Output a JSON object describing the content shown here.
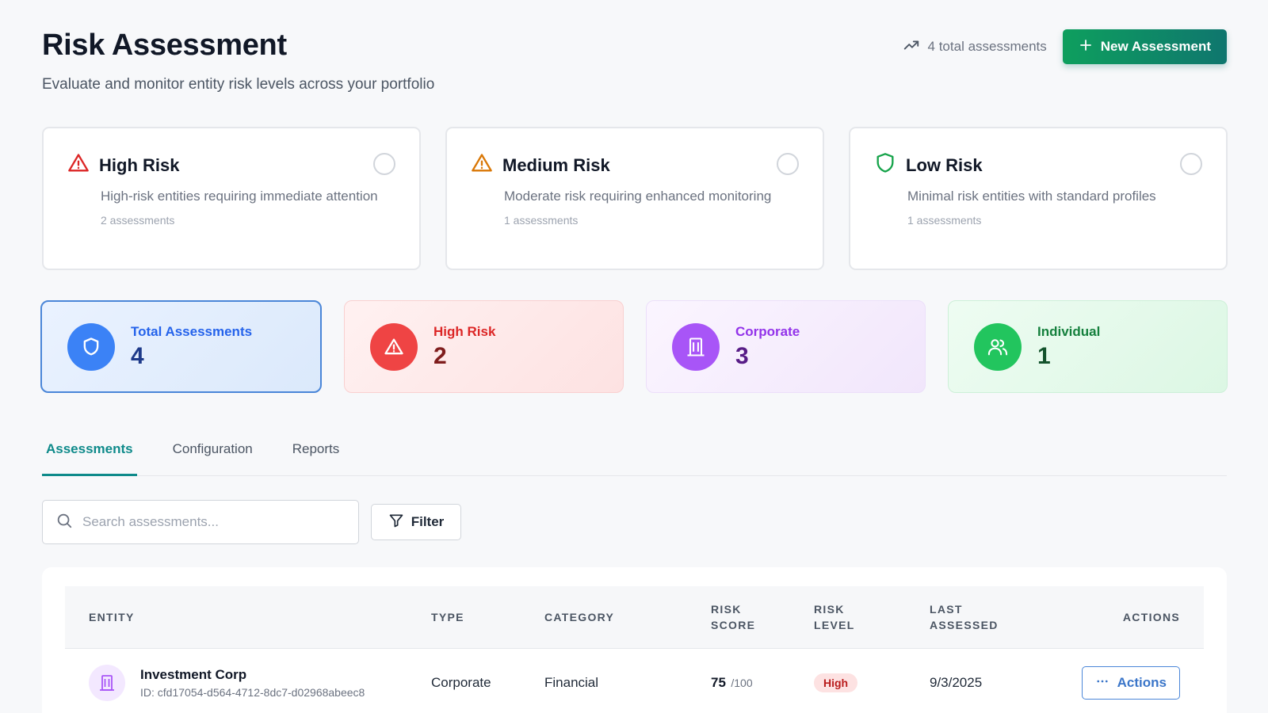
{
  "header": {
    "title": "Risk Assessment",
    "subtitle": "Evaluate and monitor entity risk levels across your portfolio",
    "total_label": "4 total assessments",
    "new_button_label": "New Assessment"
  },
  "risk_levels": [
    {
      "title": "High Risk",
      "description": "High-risk entities requiring immediate attention",
      "count_label": "2 assessments",
      "icon": "alert-triangle-icon",
      "color": "#dc2626"
    },
    {
      "title": "Medium Risk",
      "description": "Moderate risk requiring enhanced monitoring",
      "count_label": "1 assessments",
      "icon": "alert-triangle-icon",
      "color": "#d97706"
    },
    {
      "title": "Low Risk",
      "description": "Minimal risk entities with standard profiles",
      "count_label": "1 assessments",
      "icon": "shield-icon",
      "color": "#16a34a"
    }
  ],
  "stats": [
    {
      "label": "Total Assessments",
      "value": "4",
      "icon": "shield-icon",
      "color": "#3b82f6"
    },
    {
      "label": "High Risk",
      "value": "2",
      "icon": "alert-triangle-icon",
      "color": "#ef4444"
    },
    {
      "label": "Corporate",
      "value": "3",
      "icon": "building-icon",
      "color": "#a855f7"
    },
    {
      "label": "Individual",
      "value": "1",
      "icon": "users-icon",
      "color": "#22c55e"
    }
  ],
  "tabs": [
    {
      "label": "Assessments",
      "active": true
    },
    {
      "label": "Configuration",
      "active": false
    },
    {
      "label": "Reports",
      "active": false
    }
  ],
  "search": {
    "placeholder": "Search assessments..."
  },
  "filter_label": "Filter",
  "table": {
    "headers": {
      "entity": "ENTITY",
      "type": "TYPE",
      "category": "CATEGORY",
      "risk_score_1": "RISK",
      "risk_score_2": "SCORE",
      "risk_level_1": "RISK",
      "risk_level_2": "LEVEL",
      "last_assessed_1": "LAST",
      "last_assessed_2": "ASSESSED",
      "actions": "ACTIONS"
    },
    "rows": [
      {
        "name": "Investment Corp",
        "id": "ID: cfd17054-d564-4712-8dc7-d02968abeec8",
        "type": "Corporate",
        "category": "Financial",
        "score": "75",
        "score_max": "/100",
        "level": "High",
        "date": "9/3/2025",
        "actions_label": "Actions"
      }
    ]
  }
}
